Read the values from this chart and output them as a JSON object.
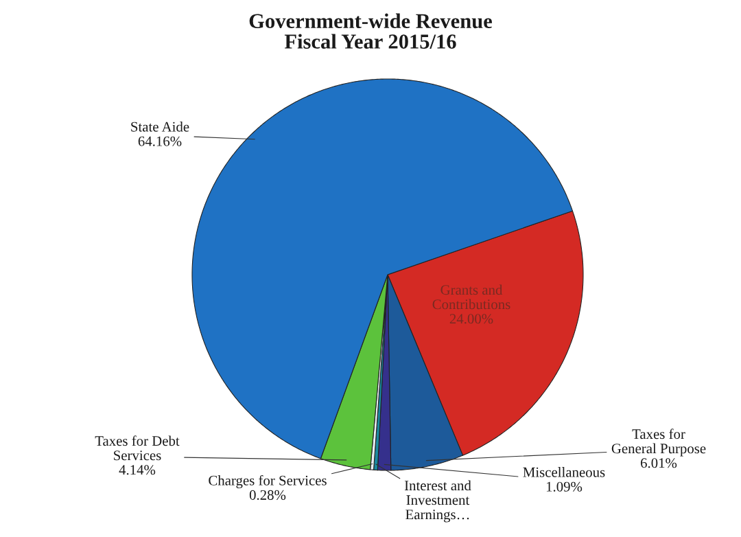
{
  "chart_data": {
    "type": "pie",
    "title": "Government-wide Revenue\nFiscal Year 2015/16",
    "categories": [
      "Grants and\nContributions",
      "Taxes for\nGeneral Purpose",
      "Miscellaneous",
      "Interest and\nInvestment\nEarnings…",
      "Charges for Services",
      "Taxes for Debt\nServices",
      "State Aide"
    ],
    "values": [
      24.0,
      6.01,
      1.09,
      0.32,
      0.28,
      4.14,
      64.16
    ],
    "value_labels": [
      "24.00%",
      "6.01%",
      "1.09%",
      null,
      "0.28%",
      "4.14%",
      "64.16%"
    ],
    "colors": [
      "#d42a24",
      "#1d5a9a",
      "#35308c",
      "#1a8aa0",
      "#e8eef2",
      "#5cc23c",
      "#1f72c4"
    ]
  }
}
